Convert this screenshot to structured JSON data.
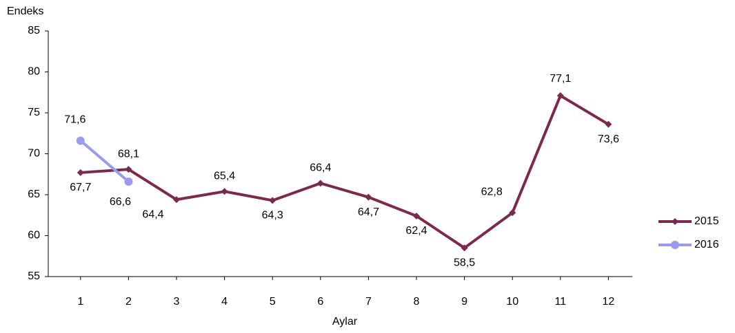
{
  "chart_data": {
    "type": "line",
    "y_label": "Endeks",
    "x_label": "Aylar",
    "categories": [
      "1",
      "2",
      "3",
      "4",
      "5",
      "6",
      "7",
      "8",
      "9",
      "10",
      "11",
      "12"
    ],
    "series": [
      {
        "name": "2015",
        "color": "#7b2a4e",
        "values": [
          67.7,
          68.1,
          64.4,
          65.4,
          64.3,
          66.4,
          64.7,
          62.4,
          58.5,
          62.8,
          77.1,
          73.6
        ],
        "value_labels": [
          "67,7",
          "68,1",
          "64,4",
          "65,4",
          "64,3",
          "66,4",
          "64,7",
          "62,4",
          "58,5",
          "62,8",
          "77,1",
          "73,6"
        ]
      },
      {
        "name": "2016",
        "color": "#9a9aee",
        "values": [
          71.6,
          66.6,
          null,
          null,
          null,
          null,
          null,
          null,
          null,
          null,
          null,
          null
        ],
        "value_labels": [
          "71,6",
          "66,6",
          null,
          null,
          null,
          null,
          null,
          null,
          null,
          null,
          null,
          null
        ]
      }
    ],
    "ylim": [
      55,
      85
    ],
    "yticks": [
      55,
      60,
      65,
      70,
      75,
      80,
      85
    ],
    "legend": "right"
  }
}
